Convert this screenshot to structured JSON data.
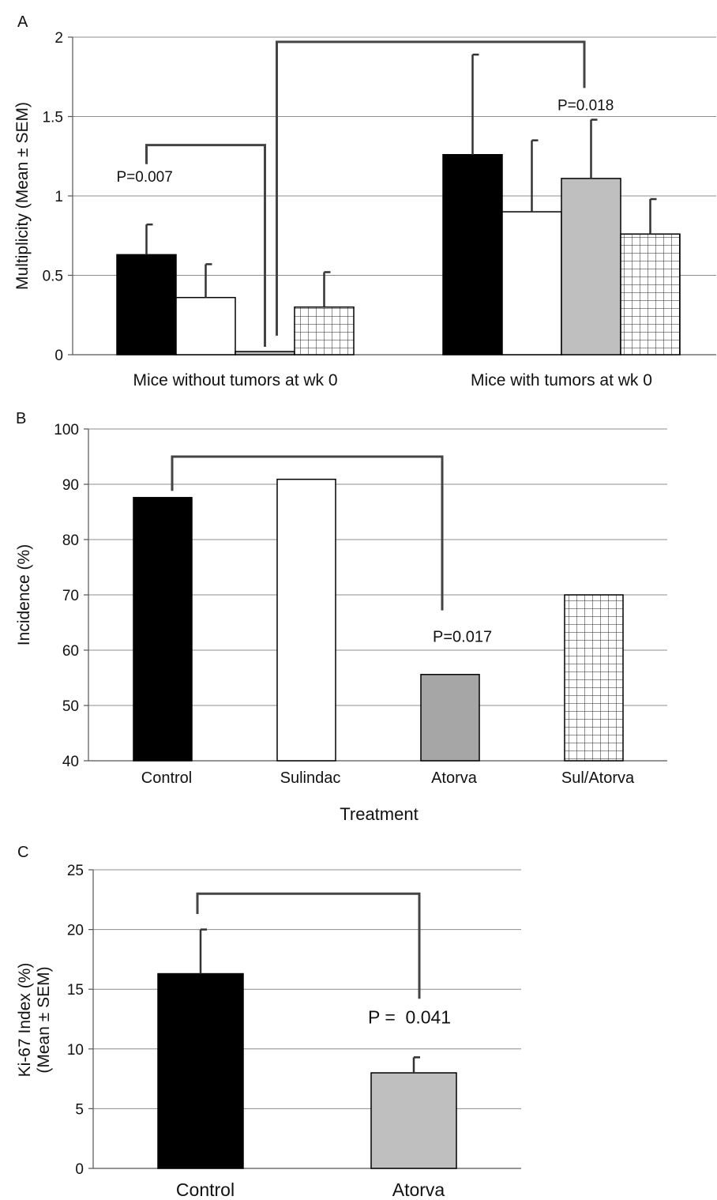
{
  "chart_data": [
    {
      "panel": "A",
      "type": "bar",
      "ylabel": "Multiplicity (Mean ± SEM)",
      "xlabel": "",
      "ylim": [
        0,
        2
      ],
      "yticks": [
        "0",
        "0.5",
        "1",
        "1.5",
        "2"
      ],
      "categories": [
        "Mice without tumors at wk 0",
        "Mice with tumors at wk 0"
      ],
      "series": [
        {
          "fill": "#000000",
          "pattern": "solid",
          "values": [
            0.63,
            1.26
          ],
          "errors": [
            0.19,
            0.63
          ]
        },
        {
          "fill": "#ffffff",
          "pattern": "solid",
          "values": [
            0.36,
            0.9
          ],
          "errors": [
            0.21,
            0.45
          ]
        },
        {
          "fill": "#bfbfbf",
          "pattern": "solid",
          "values": [
            0.02,
            1.11
          ],
          "errors": [
            0.0,
            0.37
          ]
        },
        {
          "fill": "#ffffff",
          "pattern": "grid",
          "values": [
            0.3,
            0.76
          ],
          "errors": [
            0.22,
            0.22
          ]
        }
      ],
      "annotations": [
        {
          "text": "P=0.007",
          "between": [
            [
              0,
              0
            ],
            [
              0,
              2
            ]
          ]
        },
        {
          "text": "P=0.018",
          "between": [
            [
              0,
              2
            ],
            [
              1,
              2
            ]
          ]
        }
      ],
      "grid": true
    },
    {
      "panel": "B",
      "type": "bar",
      "ylabel": "Incidence (%)",
      "xlabel": "Treatment",
      "ylim": [
        40,
        100
      ],
      "yticks": [
        "40",
        "50",
        "60",
        "70",
        "80",
        "90",
        "100"
      ],
      "categories": [
        "Control",
        "Sulindac",
        "Atorva",
        "Sul/Atorva"
      ],
      "values": [
        87.6,
        90.9,
        55.6,
        70.0
      ],
      "fills": [
        "#000000",
        "#ffffff",
        "#a6a6a6",
        "#ffffff"
      ],
      "patterns": [
        "solid",
        "solid",
        "solid",
        "grid"
      ],
      "annotations": [
        {
          "text": "P=0.017",
          "between": [
            0,
            2
          ]
        }
      ],
      "grid": true
    },
    {
      "panel": "C",
      "type": "bar",
      "ylabel": "Ki-67 Index (%) (Mean ± SEM)",
      "ylabel_lines": [
        "Ki-67 Index (%)",
        "(Mean ± SEM)"
      ],
      "xlabel": "",
      "ylim": [
        0,
        25
      ],
      "yticks": [
        "0",
        "5",
        "10",
        "15",
        "20",
        "25"
      ],
      "categories": [
        "Control",
        "Atorva"
      ],
      "values": [
        16.3,
        8.0
      ],
      "errors": [
        3.7,
        1.3
      ],
      "fills": [
        "#000000",
        "#bfbfbf"
      ],
      "annotations": [
        {
          "text": "P =  0.041",
          "between": [
            0,
            1
          ]
        }
      ],
      "grid": true
    }
  ]
}
